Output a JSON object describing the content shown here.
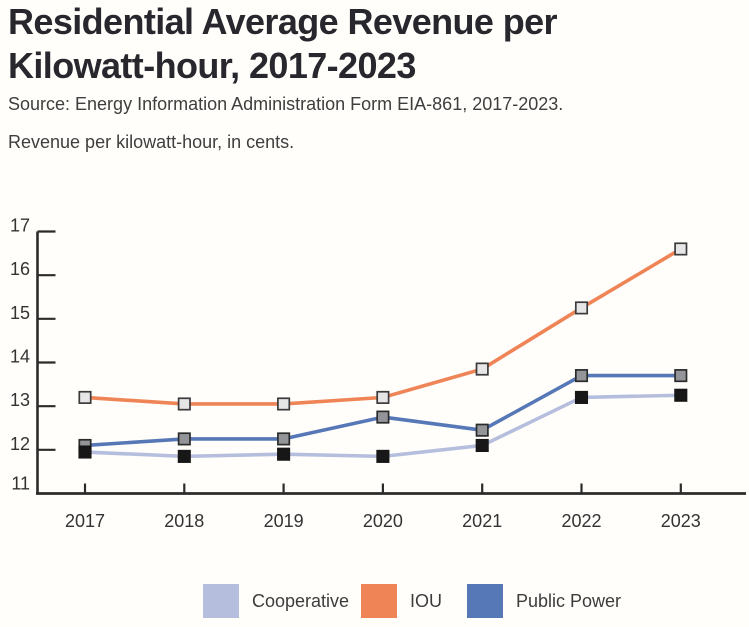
{
  "header": {
    "title_lines": [
      "Residential Average Revenue per",
      "Kilowatt-hour, 2017-2023"
    ],
    "source": "Source: Energy Information Administration Form EIA-861, 2017-2023.",
    "subtitle": "Revenue per kilowatt-hour, in cents."
  },
  "chart_data": {
    "type": "line",
    "x": [
      "2017",
      "2018",
      "2019",
      "2020",
      "2021",
      "2022",
      "2023"
    ],
    "series": [
      {
        "name": "Cooperative",
        "color": "#b6bedd",
        "marker_fill": "#171717",
        "marker_stroke": "#171717",
        "values": [
          11.95,
          11.85,
          11.9,
          11.85,
          12.1,
          13.2,
          13.25
        ]
      },
      {
        "name": "IOU",
        "color": "#ef8456",
        "marker_fill": "#e6e6e6",
        "marker_stroke": "#3b3b3b",
        "values": [
          13.2,
          13.05,
          13.05,
          13.2,
          13.85,
          15.25,
          16.6
        ]
      },
      {
        "name": "Public Power",
        "color": "#5778b7",
        "marker_fill": "#939598",
        "marker_stroke": "#2b2b2b",
        "values": [
          12.1,
          12.25,
          12.25,
          12.75,
          12.45,
          13.7,
          13.7
        ]
      }
    ],
    "ylim": [
      11,
      17
    ],
    "ytick_step": 1,
    "yticks": [
      11,
      12,
      13,
      14,
      15,
      16,
      17
    ],
    "grid": false,
    "legend_position": "bottom",
    "axis_color": "#2b2b2b",
    "tick_label_color": "#333333"
  }
}
